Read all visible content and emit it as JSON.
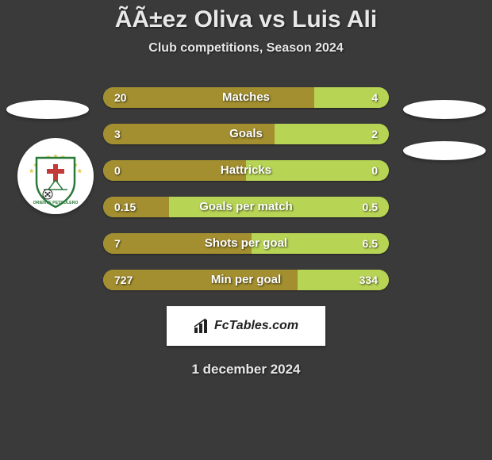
{
  "title": "ÃÃ±ez Oliva vs Luis Ali",
  "subtitle": "Club competitions, Season 2024",
  "date": "1 december 2024",
  "background_color": "#3a3a3a",
  "colors": {
    "left": "#a38f2f",
    "right": "#b8d454",
    "text": "#ffffff"
  },
  "badge": {
    "text": "FcTables.com"
  },
  "bars": [
    {
      "label": "Matches",
      "left_val": "20",
      "right_val": "4",
      "left_pct": 74,
      "right_pct": 26
    },
    {
      "label": "Goals",
      "left_val": "3",
      "right_val": "2",
      "left_pct": 60,
      "right_pct": 40
    },
    {
      "label": "Hattricks",
      "left_val": "0",
      "right_val": "0",
      "left_pct": 50,
      "right_pct": 50
    },
    {
      "label": "Goals per match",
      "left_val": "0.15",
      "right_val": "0.5",
      "left_pct": 23,
      "right_pct": 77
    },
    {
      "label": "Shots per goal",
      "left_val": "7",
      "right_val": "6.5",
      "left_pct": 52,
      "right_pct": 48
    },
    {
      "label": "Min per goal",
      "left_val": "727",
      "right_val": "334",
      "left_pct": 68,
      "right_pct": 32
    }
  ],
  "logo": {
    "shield_fill": "#ffffff",
    "shield_stroke": "#2a7a3a",
    "star_color": "#e6c84a",
    "cross_color": "#c23a3a",
    "text": "ORIENTE PETROLERO",
    "text_color": "#2a7a3a"
  }
}
